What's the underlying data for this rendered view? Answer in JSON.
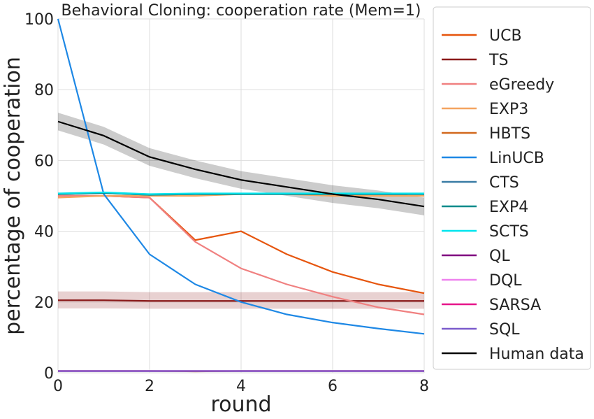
{
  "chart_data": {
    "type": "line",
    "title": "Behavioral Cloning: cooperation rate (Mem=1)",
    "xlabel": "round",
    "ylabel": "percentage of cooperation",
    "x": [
      0,
      1,
      2,
      3,
      4,
      5,
      6,
      7,
      8
    ],
    "xlim": [
      0,
      8
    ],
    "xticks": [
      0,
      2,
      4,
      6,
      8
    ],
    "ylim": [
      0,
      100
    ],
    "yticks": [
      0,
      20,
      40,
      60,
      80,
      100
    ],
    "grid": true,
    "legend": "outside right",
    "series": [
      {
        "name": "UCB",
        "color": "#e6550d",
        "values": [
          50,
          50,
          49.5,
          37.5,
          40,
          33.5,
          28.5,
          25,
          22.5
        ]
      },
      {
        "name": "TS",
        "color": "#8b1a1a",
        "values": [
          20.5,
          20.5,
          20.3,
          20.3,
          20.3,
          20.3,
          20.3,
          20.3,
          20.3
        ],
        "ci_lower": [
          18.2,
          18.2,
          18.1,
          18.1,
          18.1,
          18.1,
          18.1,
          18.1,
          18.1
        ],
        "ci_upper": [
          23,
          23,
          22.8,
          22.8,
          22.8,
          22.8,
          22.8,
          22.8,
          22.8
        ]
      },
      {
        "name": "eGreedy",
        "color": "#f08080",
        "values": [
          50,
          50,
          49.5,
          37,
          29.5,
          25,
          21.5,
          18.5,
          16.5
        ]
      },
      {
        "name": "EXP3",
        "color": "#f4a460",
        "values": [
          49.5,
          50,
          50,
          50,
          50.5,
          50.5,
          50,
          50,
          50
        ]
      },
      {
        "name": "HBTS",
        "color": "#d2691e",
        "values": [
          0.5,
          0.5,
          0.5,
          0.4,
          0.5,
          0.5,
          0.5,
          0.5,
          0.5
        ]
      },
      {
        "name": "LinUCB",
        "color": "#1e88e5",
        "values": [
          100,
          50.5,
          33.5,
          25,
          20,
          16.5,
          14.2,
          12.5,
          11
        ]
      },
      {
        "name": "CTS",
        "color": "#3a7ca5",
        "values": [
          50.5,
          50.8,
          50.3,
          50.5,
          50.5,
          50.5,
          50.5,
          50.5,
          50.5
        ]
      },
      {
        "name": "EXP4",
        "color": "#008b8b",
        "values": [
          50.5,
          50.8,
          50.3,
          50.5,
          50.5,
          50.5,
          50.5,
          50.5,
          50.5
        ]
      },
      {
        "name": "SCTS",
        "color": "#00e5ee",
        "values": [
          50.7,
          51,
          50.5,
          50.7,
          50.7,
          50.7,
          50.7,
          50.7,
          50.7
        ]
      },
      {
        "name": "QL",
        "color": "#800080",
        "values": [
          0.5,
          0.5,
          0.5,
          0.5,
          0.5,
          0.5,
          0.5,
          0.5,
          0.5
        ]
      },
      {
        "name": "DQL",
        "color": "#ee82ee",
        "values": [
          0.5,
          0.5,
          0.5,
          0.5,
          0.5,
          0.5,
          0.5,
          0.5,
          0.5
        ]
      },
      {
        "name": "SARSA",
        "color": "#e6158a",
        "values": [
          0.5,
          0.5,
          0.5,
          0.5,
          0.5,
          0.5,
          0.5,
          0.5,
          0.5
        ]
      },
      {
        "name": "SQL",
        "color": "#7b5ccc",
        "values": [
          0.5,
          0.5,
          0.5,
          0.5,
          0.5,
          0.5,
          0.5,
          0.5,
          0.5
        ]
      },
      {
        "name": "Human data",
        "color": "#000000",
        "values": [
          71,
          67,
          61,
          57.5,
          54.5,
          52.5,
          50.5,
          49,
          47
        ],
        "ci_lower": [
          68.5,
          64.5,
          58.5,
          55,
          52,
          50,
          48,
          46.5,
          44.5
        ],
        "ci_upper": [
          73.5,
          69.5,
          63.5,
          60,
          57,
          55,
          53,
          51.5,
          49.5
        ]
      }
    ]
  }
}
